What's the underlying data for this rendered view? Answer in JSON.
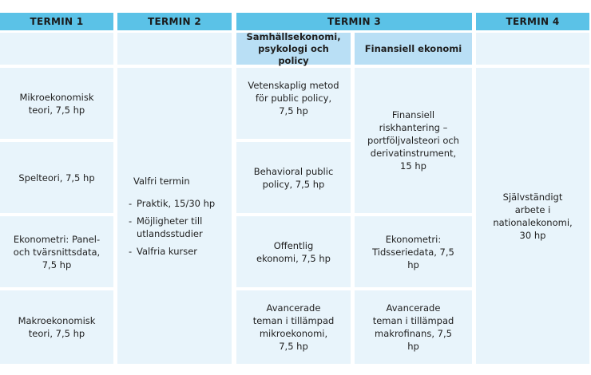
{
  "headers": [
    "TERMIN 1",
    "TERMIN 2",
    "TERMIN 3",
    "TERMIN 4"
  ],
  "termin3_tracks": [
    "Samhällsekonomi, psykologi och policy",
    "Finansiell ekonomi"
  ],
  "termin1": [
    "Mikroekonomisk teori, 7,5 hp",
    "Spelteori, 7,5 hp",
    "Ekonometri: Panel- och tvärsnittsdata, 7,5 hp",
    "Makroekonomisk teori, 7,5 hp"
  ],
  "termin2": {
    "title": "Valfri termin",
    "items": [
      "Praktik, 15/30 hp",
      "Möjligheter till utlandsstudier",
      "Valfria kurser"
    ]
  },
  "termin3_left": [
    "Vetenskaplig metod för public policy, 7,5 hp",
    "Behavioral public policy, 7,5 hp",
    "Offentlig ekonomi, 7,5 hp",
    "Avancerade teman i tillämpad mikroekonomi, 7,5 hp"
  ],
  "termin3_right": [
    "Finansiell riskhantering – portföljvalsteori och derivatinstrument, 15 hp",
    "Ekonometri: Tidsseriedata, 7,5 hp",
    "Avancerade teman i tillämpad makrofinans, 7,5 hp"
  ],
  "termin4": "Självständigt arbete i nationalekonomi, 30 hp"
}
